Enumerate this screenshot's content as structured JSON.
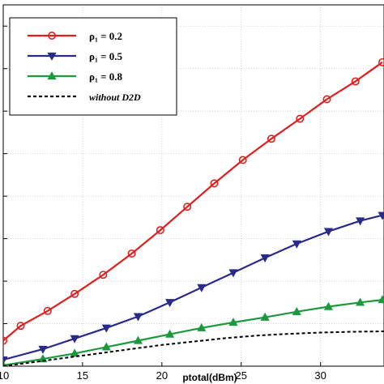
{
  "chart_data": {
    "type": "line",
    "xlabel": "ptotal(dBm)",
    "ylabel": "",
    "title": "",
    "xlim": [
      10,
      34
    ],
    "ylim": [
      0,
      8.5
    ],
    "x_ticks": [
      "10",
      "15",
      "20",
      "25",
      "30"
    ],
    "x_tick_values": [
      10,
      15,
      20,
      25,
      30
    ],
    "grid": true,
    "legend_position": "top-left",
    "series": [
      {
        "name": "ρ₁ = 0.2",
        "color": "#e02020",
        "marker": "circle",
        "line_style": "solid",
        "x": [
          10,
          11.1,
          12.8,
          14.5,
          16.3,
          18.1,
          19.9,
          21.6,
          23.3,
          25.1,
          26.9,
          28.7,
          30.4,
          32.2,
          33.9
        ],
        "values": [
          0.6,
          0.95,
          1.3,
          1.7,
          2.15,
          2.65,
          3.2,
          3.75,
          4.3,
          4.85,
          5.35,
          5.82,
          6.28,
          6.7,
          7.15
        ]
      },
      {
        "name": "ρ₁ = 0.5",
        "color": "#2a2a8c",
        "marker": "triangle-down",
        "line_style": "solid",
        "x": [
          10,
          12.5,
          14.5,
          16.5,
          18.5,
          20.5,
          22.5,
          24.5,
          26.5,
          28.5,
          30.5,
          32.5,
          33.9
        ],
        "values": [
          0.15,
          0.4,
          0.65,
          0.9,
          1.17,
          1.5,
          1.85,
          2.2,
          2.55,
          2.88,
          3.17,
          3.42,
          3.55
        ]
      },
      {
        "name": "ρ₁ = 0.8",
        "color": "#1a9a3c",
        "marker": "triangle-up",
        "line_style": "solid",
        "x": [
          10,
          12.5,
          14.5,
          16.5,
          18.5,
          20.5,
          22.5,
          24.5,
          26.5,
          28.5,
          30.5,
          32.5,
          33.9
        ],
        "values": [
          0.02,
          0.17,
          0.3,
          0.45,
          0.6,
          0.75,
          0.9,
          1.03,
          1.15,
          1.28,
          1.4,
          1.5,
          1.56
        ]
      },
      {
        "name": "without D2D",
        "color": "#000000",
        "marker": "none",
        "line_style": "dashed",
        "x": [
          10,
          12,
          14,
          16,
          18,
          20,
          22,
          24,
          26,
          28,
          30,
          32,
          34
        ],
        "values": [
          0.0,
          0.1,
          0.2,
          0.3,
          0.4,
          0.5,
          0.58,
          0.66,
          0.72,
          0.76,
          0.79,
          0.81,
          0.82
        ]
      }
    ]
  }
}
